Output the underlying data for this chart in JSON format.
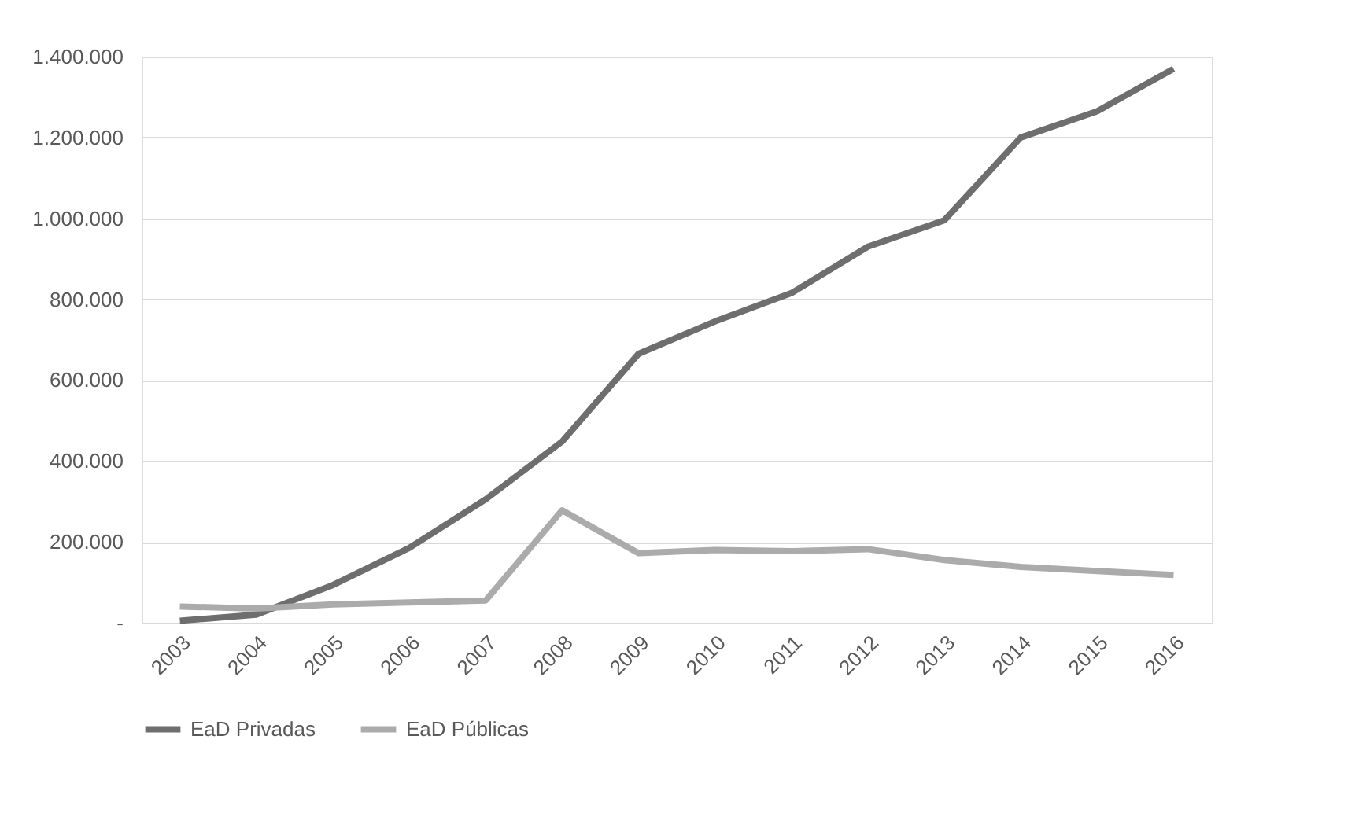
{
  "chart_data": {
    "type": "line",
    "categories": [
      "2003",
      "2004",
      "2005",
      "2006",
      "2007",
      "2008",
      "2009",
      "2010",
      "2011",
      "2012",
      "2013",
      "2014",
      "2015",
      "2016"
    ],
    "series": [
      {
        "name": "EaD Privadas",
        "color": "#6e6e6e",
        "values": [
          5000,
          20000,
          93000,
          185000,
          305000,
          448000,
          665000,
          745000,
          815000,
          930000,
          995000,
          1200000,
          1265000,
          1370000
        ]
      },
      {
        "name": "EaD Públicas",
        "color": "#ababab",
        "values": [
          40000,
          35000,
          45000,
          50000,
          55000,
          278000,
          172000,
          180000,
          177000,
          182000,
          155000,
          138000,
          128000,
          118000
        ]
      }
    ],
    "ylim": [
      0,
      1400000
    ],
    "yticks": [
      {
        "value": 0,
        "label": "-"
      },
      {
        "value": 200000,
        "label": "200.000"
      },
      {
        "value": 400000,
        "label": "400.000"
      },
      {
        "value": 600000,
        "label": "600.000"
      },
      {
        "value": 800000,
        "label": "800.000"
      },
      {
        "value": 1000000,
        "label": "1.000.000"
      },
      {
        "value": 1200000,
        "label": "1.200.000"
      },
      {
        "value": 1400000,
        "label": "1.400.000"
      }
    ],
    "grid": "y",
    "legend": "bottom",
    "marker": "none",
    "line_style": "solid"
  }
}
